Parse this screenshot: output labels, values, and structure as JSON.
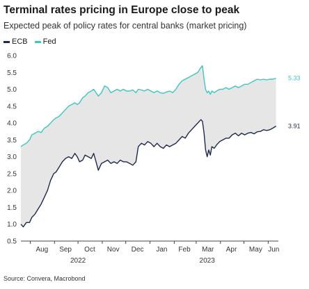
{
  "header": {
    "title": "Terminal rates pricing in Europe close to peak",
    "subtitle": "Expected peak of policy rates for central banks (market pricing)"
  },
  "footer": {
    "source": "Source: Convera, Macrobond"
  },
  "colors": {
    "ecb": "#1c2b4a",
    "fed": "#3cc7c0",
    "band": "#e6e6e6",
    "axis": "#444444"
  },
  "chart_data": {
    "type": "line",
    "title": "Terminal rates pricing in Europe close to peak",
    "subtitle": "Expected peak of policy rates for central banks (market pricing)",
    "xlabel": "",
    "ylabel": "",
    "xlim": [
      "2022-07-20",
      "2023-06-14"
    ],
    "ylim": [
      0.5,
      6.0
    ],
    "yticks": [
      "0.5",
      "1.0",
      "1.5",
      "2.0",
      "2.5",
      "3.0",
      "3.5",
      "4.0",
      "4.5",
      "5.0",
      "5.5",
      "6.0"
    ],
    "month_ticks": [
      "2022-08-01",
      "2022-09-01",
      "2022-10-01",
      "2022-11-01",
      "2022-12-01",
      "2023-01-01",
      "2023-02-01",
      "2023-03-01",
      "2023-04-01",
      "2023-05-01",
      "2023-06-01"
    ],
    "month_labels": [
      "Aug",
      "Sep",
      "Oct",
      "Nov",
      "Dec",
      "Jan",
      "Feb",
      "Mar",
      "Apr",
      "May",
      "Jun"
    ],
    "month_label_dates": [
      "2022-08-16",
      "2022-09-15",
      "2022-10-16",
      "2022-11-15",
      "2022-12-16",
      "2023-01-16",
      "2023-02-14",
      "2023-03-16",
      "2023-04-15",
      "2023-05-16",
      "2023-06-08"
    ],
    "year_labels": [
      {
        "label": "2022",
        "date": "2022-10-01"
      },
      {
        "label": "2023",
        "date": "2023-03-15"
      }
    ],
    "grid": false,
    "legend": "top-left",
    "shading": "between series",
    "series": [
      {
        "name": "ECB",
        "color": "#1c2b4a",
        "end_label": "3.91",
        "points": [
          [
            "2022-07-20",
            1.0
          ],
          [
            "2022-07-23",
            0.92
          ],
          [
            "2022-07-27",
            1.05
          ],
          [
            "2022-07-31",
            1.05
          ],
          [
            "2022-08-03",
            1.2
          ],
          [
            "2022-08-07",
            1.3
          ],
          [
            "2022-08-11",
            1.45
          ],
          [
            "2022-08-15",
            1.6
          ],
          [
            "2022-08-19",
            1.8
          ],
          [
            "2022-08-23",
            2.0
          ],
          [
            "2022-08-27",
            2.3
          ],
          [
            "2022-08-31",
            2.5
          ],
          [
            "2022-09-03",
            2.55
          ],
          [
            "2022-09-07",
            2.7
          ],
          [
            "2022-09-11",
            2.85
          ],
          [
            "2022-09-15",
            2.95
          ],
          [
            "2022-09-19",
            3.0
          ],
          [
            "2022-09-23",
            2.95
          ],
          [
            "2022-09-27",
            3.1
          ],
          [
            "2022-09-30",
            3.0
          ],
          [
            "2022-10-03",
            2.85
          ],
          [
            "2022-10-07",
            2.9
          ],
          [
            "2022-10-10",
            3.05
          ],
          [
            "2022-10-14",
            3.0
          ],
          [
            "2022-10-18",
            2.95
          ],
          [
            "2022-10-21",
            3.1
          ],
          [
            "2022-10-24",
            2.85
          ],
          [
            "2022-10-27",
            2.6
          ],
          [
            "2022-10-31",
            2.8
          ],
          [
            "2022-11-04",
            2.85
          ],
          [
            "2022-11-08",
            2.9
          ],
          [
            "2022-11-12",
            2.8
          ],
          [
            "2022-11-16",
            2.85
          ],
          [
            "2022-11-20",
            2.8
          ],
          [
            "2022-11-24",
            2.9
          ],
          [
            "2022-11-28",
            2.85
          ],
          [
            "2022-12-02",
            2.85
          ],
          [
            "2022-12-06",
            2.8
          ],
          [
            "2022-12-10",
            2.75
          ],
          [
            "2022-12-14",
            2.85
          ],
          [
            "2022-12-17",
            3.3
          ],
          [
            "2022-12-21",
            3.4
          ],
          [
            "2022-12-25",
            3.35
          ],
          [
            "2022-12-29",
            3.45
          ],
          [
            "2023-01-02",
            3.4
          ],
          [
            "2023-01-06",
            3.3
          ],
          [
            "2023-01-10",
            3.4
          ],
          [
            "2023-01-14",
            3.3
          ],
          [
            "2023-01-18",
            3.25
          ],
          [
            "2023-01-22",
            3.35
          ],
          [
            "2023-01-26",
            3.3
          ],
          [
            "2023-01-30",
            3.35
          ],
          [
            "2023-02-03",
            3.4
          ],
          [
            "2023-02-07",
            3.5
          ],
          [
            "2023-02-11",
            3.6
          ],
          [
            "2023-02-15",
            3.55
          ],
          [
            "2023-02-19",
            3.7
          ],
          [
            "2023-02-23",
            3.8
          ],
          [
            "2023-02-27",
            3.9
          ],
          [
            "2023-03-03",
            4.0
          ],
          [
            "2023-03-07",
            4.1
          ],
          [
            "2023-03-09",
            4.05
          ],
          [
            "2023-03-11",
            3.7
          ],
          [
            "2023-03-13",
            3.2
          ],
          [
            "2023-03-15",
            3.0
          ],
          [
            "2023-03-17",
            3.2
          ],
          [
            "2023-03-19",
            3.05
          ],
          [
            "2023-03-21",
            3.3
          ],
          [
            "2023-03-24",
            3.25
          ],
          [
            "2023-03-27",
            3.35
          ],
          [
            "2023-03-31",
            3.45
          ],
          [
            "2023-04-04",
            3.5
          ],
          [
            "2023-04-08",
            3.55
          ],
          [
            "2023-04-12",
            3.55
          ],
          [
            "2023-04-16",
            3.65
          ],
          [
            "2023-04-20",
            3.7
          ],
          [
            "2023-04-24",
            3.62
          ],
          [
            "2023-04-28",
            3.7
          ],
          [
            "2023-05-02",
            3.65
          ],
          [
            "2023-05-06",
            3.7
          ],
          [
            "2023-05-10",
            3.72
          ],
          [
            "2023-05-14",
            3.68
          ],
          [
            "2023-05-18",
            3.74
          ],
          [
            "2023-05-22",
            3.75
          ],
          [
            "2023-05-26",
            3.8
          ],
          [
            "2023-05-30",
            3.78
          ],
          [
            "2023-06-03",
            3.8
          ],
          [
            "2023-06-07",
            3.85
          ],
          [
            "2023-06-11",
            3.91
          ]
        ]
      },
      {
        "name": "Fed",
        "color": "#3cc7c0",
        "end_label": "5.33",
        "points": [
          [
            "2022-07-20",
            3.3
          ],
          [
            "2022-07-23",
            3.35
          ],
          [
            "2022-07-27",
            3.4
          ],
          [
            "2022-07-31",
            3.5
          ],
          [
            "2022-08-03",
            3.65
          ],
          [
            "2022-08-07",
            3.7
          ],
          [
            "2022-08-11",
            3.75
          ],
          [
            "2022-08-15",
            3.72
          ],
          [
            "2022-08-19",
            3.85
          ],
          [
            "2022-08-23",
            3.9
          ],
          [
            "2022-08-27",
            4.0
          ],
          [
            "2022-08-31",
            4.1
          ],
          [
            "2022-09-03",
            4.15
          ],
          [
            "2022-09-07",
            4.2
          ],
          [
            "2022-09-11",
            4.3
          ],
          [
            "2022-09-15",
            4.4
          ],
          [
            "2022-09-19",
            4.5
          ],
          [
            "2022-09-23",
            4.55
          ],
          [
            "2022-09-27",
            4.6
          ],
          [
            "2022-09-30",
            4.55
          ],
          [
            "2022-10-03",
            4.6
          ],
          [
            "2022-10-07",
            4.75
          ],
          [
            "2022-10-10",
            4.8
          ],
          [
            "2022-10-14",
            4.9
          ],
          [
            "2022-10-18",
            4.95
          ],
          [
            "2022-10-21",
            5.0
          ],
          [
            "2022-10-24",
            4.9
          ],
          [
            "2022-10-27",
            4.8
          ],
          [
            "2022-10-31",
            4.9
          ],
          [
            "2022-11-04",
            5.1
          ],
          [
            "2022-11-08",
            5.05
          ],
          [
            "2022-11-12",
            4.9
          ],
          [
            "2022-11-16",
            4.95
          ],
          [
            "2022-11-20",
            5.0
          ],
          [
            "2022-11-24",
            4.95
          ],
          [
            "2022-11-28",
            5.0
          ],
          [
            "2022-12-02",
            4.95
          ],
          [
            "2022-12-06",
            4.95
          ],
          [
            "2022-12-10",
            4.98
          ],
          [
            "2022-12-14",
            4.9
          ],
          [
            "2022-12-17",
            5.0
          ],
          [
            "2022-12-21",
            4.98
          ],
          [
            "2022-12-25",
            4.95
          ],
          [
            "2022-12-29",
            5.0
          ],
          [
            "2023-01-02",
            4.95
          ],
          [
            "2023-01-06",
            4.9
          ],
          [
            "2023-01-10",
            4.95
          ],
          [
            "2023-01-14",
            4.9
          ],
          [
            "2023-01-18",
            4.88
          ],
          [
            "2023-01-22",
            4.92
          ],
          [
            "2023-01-26",
            4.95
          ],
          [
            "2023-01-30",
            4.9
          ],
          [
            "2023-02-03",
            5.0
          ],
          [
            "2023-02-07",
            5.15
          ],
          [
            "2023-02-11",
            5.25
          ],
          [
            "2023-02-15",
            5.3
          ],
          [
            "2023-02-19",
            5.35
          ],
          [
            "2023-02-23",
            5.4
          ],
          [
            "2023-02-27",
            5.45
          ],
          [
            "2023-03-03",
            5.5
          ],
          [
            "2023-03-07",
            5.65
          ],
          [
            "2023-03-09",
            5.7
          ],
          [
            "2023-03-11",
            5.3
          ],
          [
            "2023-03-13",
            5.0
          ],
          [
            "2023-03-15",
            4.9
          ],
          [
            "2023-03-17",
            4.95
          ],
          [
            "2023-03-19",
            4.85
          ],
          [
            "2023-03-21",
            4.95
          ],
          [
            "2023-03-24",
            4.9
          ],
          [
            "2023-03-27",
            4.95
          ],
          [
            "2023-03-31",
            5.0
          ],
          [
            "2023-04-04",
            5.0
          ],
          [
            "2023-04-08",
            5.05
          ],
          [
            "2023-04-12",
            5.0
          ],
          [
            "2023-04-16",
            5.05
          ],
          [
            "2023-04-20",
            5.1
          ],
          [
            "2023-04-24",
            5.05
          ],
          [
            "2023-04-28",
            5.1
          ],
          [
            "2023-05-02",
            5.15
          ],
          [
            "2023-05-06",
            5.15
          ],
          [
            "2023-05-10",
            5.2
          ],
          [
            "2023-05-14",
            5.25
          ],
          [
            "2023-05-18",
            5.3
          ],
          [
            "2023-05-22",
            5.28
          ],
          [
            "2023-05-26",
            5.3
          ],
          [
            "2023-05-30",
            5.28
          ],
          [
            "2023-06-03",
            5.3
          ],
          [
            "2023-06-07",
            5.3
          ],
          [
            "2023-06-11",
            5.33
          ]
        ]
      }
    ]
  }
}
